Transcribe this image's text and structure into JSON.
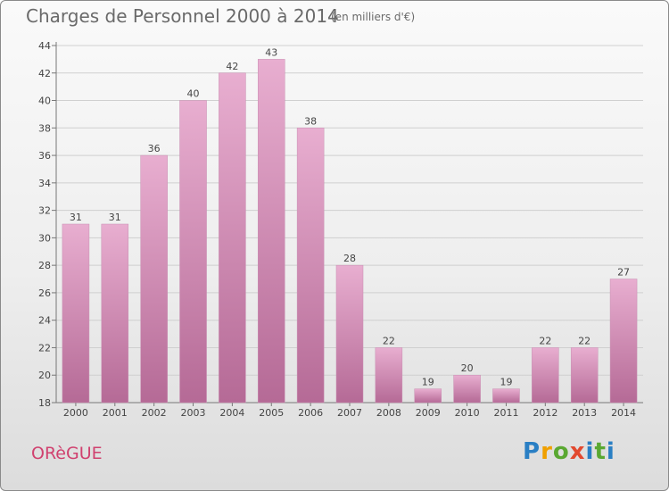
{
  "header": {
    "title": "Charges de Personnel 2000 à 2014",
    "subtitle": "(en milliers d'€)"
  },
  "footer": {
    "commune": "ORèGUE",
    "logo_text": "Proxiti"
  },
  "colors": {
    "bar_top": "#e8aed0",
    "bar_bottom": "#b56a96",
    "commune_text": "#d0416f"
  },
  "chart_data": {
    "type": "bar",
    "categories": [
      "2000",
      "2001",
      "2002",
      "2003",
      "2004",
      "2005",
      "2006",
      "2007",
      "2008",
      "2009",
      "2010",
      "2011",
      "2012",
      "2013",
      "2014"
    ],
    "values": [
      31,
      31,
      36,
      40,
      42,
      43,
      38,
      28,
      22,
      19,
      20,
      19,
      22,
      22,
      27
    ],
    "title": "Charges de Personnel 2000 à 2014",
    "subtitle": "(en milliers d'€)",
    "ylim": [
      18,
      44
    ],
    "yticks": [
      18,
      20,
      22,
      24,
      26,
      28,
      30,
      32,
      34,
      36,
      38,
      40,
      42,
      44
    ],
    "grid": true
  }
}
